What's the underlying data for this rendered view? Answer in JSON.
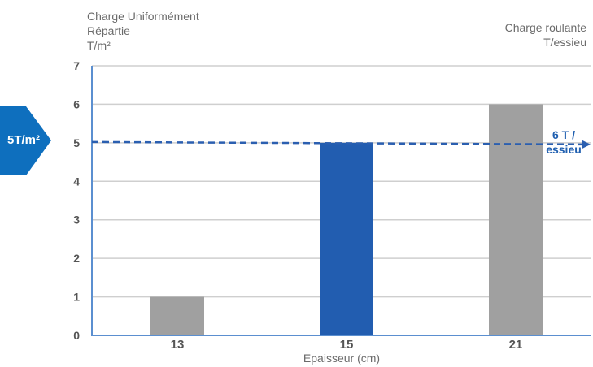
{
  "left_axis": {
    "title_lines": [
      "Charge Uniformément",
      "Répartie",
      "T/m²"
    ]
  },
  "right_axis": {
    "title_lines": [
      "Charge roulante",
      "T/essieu"
    ]
  },
  "marker": {
    "label": "5T/m²",
    "value": 5,
    "color": "#0e6fbe"
  },
  "reference_line": {
    "value": 5,
    "label_lines": [
      "6 T /",
      "essieu"
    ],
    "color": "#2b5fb0"
  },
  "colors": {
    "gray_bar": "#a0a0a0",
    "highlight_bar": "#225db0",
    "grid": "#cfcfcf",
    "axis": "#5b8fd0",
    "tick_text": "#555555"
  },
  "chart_data": {
    "type": "bar",
    "categories": [
      "13",
      "15",
      "21"
    ],
    "values": [
      1,
      5,
      6
    ],
    "highlight_index": 1,
    "xlabel": "Epaisseur (cm)",
    "ylabel": "Charge Uniformément Répartie T/m²",
    "ylim": [
      0,
      7
    ],
    "yticks": [
      0,
      1,
      2,
      3,
      4,
      5,
      6,
      7
    ],
    "grid": true
  }
}
